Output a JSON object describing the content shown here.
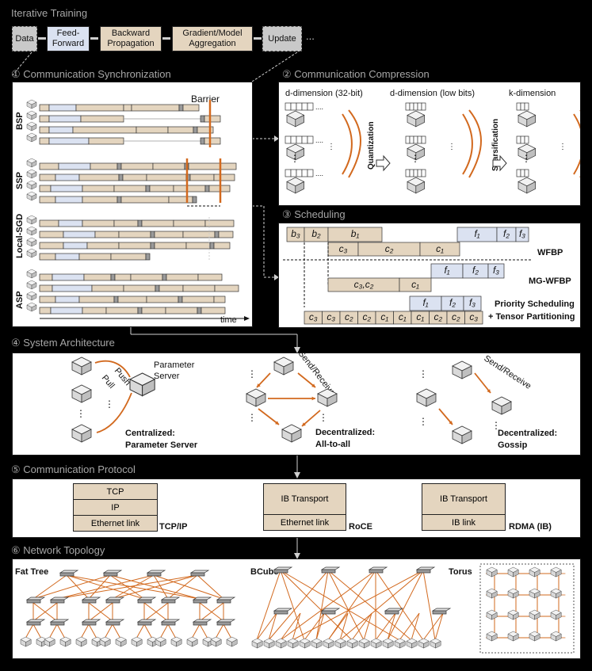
{
  "sections": {
    "iterative_training": "Iterative Training",
    "comm_sync": "① Communication Synchronization",
    "comm_compress": "② Communication Compression",
    "scheduling": "③ Scheduling",
    "system_arch": "④ System Architecture",
    "comm_protocol": "⑤ Communication Protocol",
    "net_topology": "⑥ Network Topology"
  },
  "pipeline": {
    "data": "Data",
    "feed_forward_1": "Feed-",
    "feed_forward_2": "Forward",
    "backward_1": "Backward",
    "backward_2": "Propagation",
    "aggregation_1": "Gradient/Model",
    "aggregation_2": "Aggregation",
    "update": "Update",
    "ellipsis": "..."
  },
  "sync": {
    "barrier": "Barrier",
    "bsp": "BSP",
    "ssp": "SSP",
    "local_sgd": "Local-SGD",
    "asp": "ASP",
    "time": "time"
  },
  "compression": {
    "dim32": "d-dimension (32-bit)",
    "dim_low": "d-dimension (low bits)",
    "k_dim": "k-dimension",
    "quantization": "Quantization",
    "sparsification": "Sparsification"
  },
  "scheduling": {
    "b3": "b₃",
    "b2": "b₂",
    "b1": "b₁",
    "f1": "f₁",
    "f2": "f₂",
    "f3": "f₃",
    "c3": "c₃",
    "c2": "c₂",
    "c1": "c₁",
    "c3c2": "c₃,c₂",
    "wfbp": "WFBP",
    "mg_wfbp": "MG-WFBP",
    "priority_1": "Priority Scheduling",
    "priority_2": "+ Tensor Partitioning"
  },
  "architecture": {
    "push": "Push",
    "pull": "Pull",
    "ps_1": "Parameter",
    "ps_2": "Server",
    "centralized_1": "Centralized:",
    "centralized_2": "Parameter Server",
    "send_receive_1": "Send/Receive",
    "send_receive_2": "Send/Receive",
    "all_1": "Decentralized:",
    "all_2": "All-to-all",
    "gossip_1": "Decentralized:",
    "gossip_2": "Gossip"
  },
  "protocol": {
    "tcp": "TCP",
    "ip": "IP",
    "ethernet_link_1": "Ethernet link",
    "tcpip": "TCP/IP",
    "ib_transport_1": "IB Transport",
    "ethernet_link_2": "Ethernet link",
    "roce": "RoCE",
    "ib_transport_2": "IB Transport",
    "ib_link": "IB link",
    "rdma": "RDMA (IB)"
  },
  "topology": {
    "fat_tree": "Fat Tree",
    "bcube": "BCube",
    "torus": "Torus"
  },
  "colors": {
    "blue": "#dbe2f1",
    "tan": "#e4d5bf",
    "gray": "#c9c9c9",
    "orange": "#d2691e",
    "section_title": "#a6a6a6"
  }
}
